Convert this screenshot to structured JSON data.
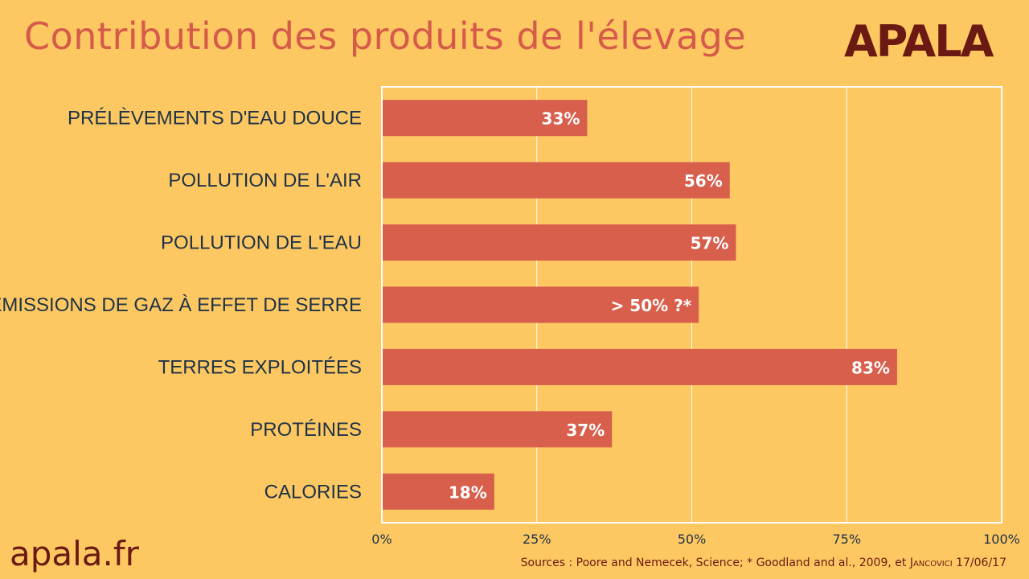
{
  "title": "Contribution des produits de l'élevage",
  "logo": "APALA",
  "footer": {
    "brand": "apala.fr",
    "sources_prefix": "Sources : Poore and Nemecek, Science; * Goodland and al., 2009, et ",
    "sources_author": "Jancovici",
    "sources_date": " 17/06/17"
  },
  "colors": {
    "background": "#fdc862",
    "bar": "#d75f4c",
    "title": "#d55a49",
    "brand": "#6a1a12",
    "text": "#1e3247"
  },
  "chart_data": {
    "type": "bar",
    "orientation": "horizontal",
    "categories": [
      "PRÉLÈVEMENTS D'EAU DOUCE",
      "POLLUTION DE L'AIR",
      "POLLUTION DE L'EAU",
      "EMISSIONS DE GAZ À EFFET DE SERRE",
      "TERRES EXPLOITÉES",
      "PROTÉINES",
      "CALORIES"
    ],
    "values": [
      33,
      56,
      57,
      51,
      83,
      37,
      18
    ],
    "data_labels": [
      "33%",
      "56%",
      "57%",
      "> 50% ?*",
      "83%",
      "37%",
      "18%"
    ],
    "xlim": [
      0,
      100
    ],
    "xticks": [
      0,
      25,
      50,
      75,
      100
    ],
    "xtick_labels": [
      "0%",
      "25%",
      "50%",
      "75%",
      "100%"
    ],
    "grid": "vertical",
    "legend": "none"
  }
}
